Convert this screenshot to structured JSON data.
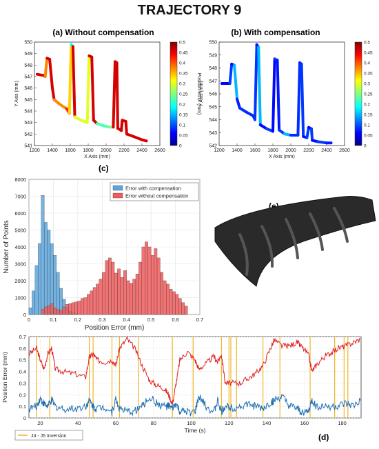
{
  "figure": {
    "title": "TRAJECTORY 9",
    "labels": {
      "c": "(c)",
      "d": "(d)",
      "e": "(e)"
    },
    "colors": {
      "error_low": "#0a12c8",
      "error_high": "#7a0000",
      "with_comp": "#5aa5dc",
      "without_comp": "#ef5a5a",
      "inversion": "#f0b428",
      "blue_line": "#1f6fb4",
      "red_line": "#e02020"
    }
  },
  "chart_data": [
    {
      "type": "line",
      "title": "(a) Without compensation",
      "xlabel": "X Axis (mm)",
      "ylabel": "Y Axis (mm)",
      "xlim": [
        1200,
        2600
      ],
      "ylim": [
        541,
        550
      ],
      "xticks": [
        1200,
        1400,
        1600,
        1800,
        2000,
        2200,
        2400,
        2600
      ],
      "yticks": [
        541,
        542,
        543,
        544,
        545,
        546,
        547,
        548,
        549,
        550
      ],
      "path": [
        [
          1230,
          547.2
        ],
        [
          1300,
          547.1
        ],
        [
          1320,
          547.0
        ],
        [
          1340,
          548.6
        ],
        [
          1370,
          548.5
        ],
        [
          1400,
          546.0
        ],
        [
          1420,
          545.0
        ],
        [
          1480,
          544.6
        ],
        [
          1560,
          544.2
        ],
        [
          1590,
          543.8
        ],
        [
          1610,
          549.8
        ],
        [
          1630,
          549.6
        ],
        [
          1650,
          543.5
        ],
        [
          1720,
          543.2
        ],
        [
          1790,
          543.0
        ],
        [
          1810,
          548.8
        ],
        [
          1840,
          548.7
        ],
        [
          1860,
          543.2
        ],
        [
          1900,
          542.9
        ],
        [
          1980,
          542.7
        ],
        [
          2040,
          542.6
        ],
        [
          2080,
          542.6
        ],
        [
          2100,
          548.3
        ],
        [
          2120,
          548.2
        ],
        [
          2130,
          542.5
        ],
        [
          2170,
          542.3
        ],
        [
          2180,
          543.2
        ],
        [
          2220,
          543.1
        ],
        [
          2230,
          542.0
        ],
        [
          2300,
          541.8
        ],
        [
          2400,
          541.5
        ],
        [
          2450,
          541.4
        ]
      ],
      "colorbar": {
        "label": "Position Error (mm)",
        "range": [
          0,
          0.5
        ],
        "ticks": [
          0,
          0.05,
          0.1,
          0.15,
          0.2,
          0.25,
          0.3,
          0.35,
          0.4,
          0.45,
          0.5
        ]
      }
    },
    {
      "type": "line",
      "title": "(b) With compensation",
      "xlabel": "X Axis (mm)",
      "ylabel": "Y Axis (mm)",
      "xlim": [
        1200,
        2600
      ],
      "ylim": [
        542,
        550
      ],
      "xticks": [
        1200,
        1400,
        1600,
        1800,
        2000,
        2200,
        2400,
        2600
      ],
      "yticks": [
        542,
        543,
        544,
        545,
        546,
        547,
        548,
        549,
        550
      ],
      "path": [
        [
          1230,
          546.8
        ],
        [
          1320,
          546.8
        ],
        [
          1340,
          548.3
        ],
        [
          1370,
          548.2
        ],
        [
          1400,
          545.6
        ],
        [
          1430,
          544.9
        ],
        [
          1500,
          544.6
        ],
        [
          1580,
          544.3
        ],
        [
          1600,
          544.0
        ],
        [
          1620,
          549.8
        ],
        [
          1640,
          549.6
        ],
        [
          1660,
          543.6
        ],
        [
          1730,
          543.3
        ],
        [
          1800,
          543.1
        ],
        [
          1820,
          548.7
        ],
        [
          1850,
          548.6
        ],
        [
          1870,
          543.2
        ],
        [
          1930,
          542.9
        ],
        [
          2000,
          542.8
        ],
        [
          2080,
          542.8
        ],
        [
          2100,
          548.4
        ],
        [
          2120,
          548.3
        ],
        [
          2140,
          542.7
        ],
        [
          2180,
          542.6
        ],
        [
          2200,
          543.4
        ],
        [
          2230,
          543.3
        ],
        [
          2240,
          542.4
        ],
        [
          2300,
          542.3
        ],
        [
          2400,
          542.2
        ],
        [
          2450,
          542.2
        ]
      ],
      "colorbar": {
        "label": "Position Error (mm)",
        "range": [
          0,
          0.5
        ],
        "ticks": [
          0,
          0.05,
          0.1,
          0.15,
          0.2,
          0.25,
          0.3,
          0.35,
          0.4,
          0.45,
          0.5
        ]
      }
    },
    {
      "type": "bar",
      "xlabel": "Position Error (mm)",
      "ylabel": "Number of Points",
      "xlim": [
        0,
        0.7
      ],
      "ylim": [
        0,
        8000
      ],
      "xticks": [
        0,
        0.1,
        0.2,
        0.3,
        0.4,
        0.5,
        0.6,
        0.7
      ],
      "yticks": [
        0,
        1000,
        2000,
        3000,
        4000,
        5000,
        6000,
        7000,
        8000
      ],
      "bin_width": 0.0125,
      "series": [
        {
          "name": "Error with compensation",
          "bin_start": 0,
          "values": [
            400,
            1400,
            2900,
            4200,
            7050,
            5450,
            5000,
            4200,
            3500,
            2500,
            1550,
            900,
            450,
            200,
            100,
            50
          ]
        },
        {
          "name": "Error without compensation",
          "bin_start": 0.05,
          "values": [
            300,
            450,
            520,
            650,
            400,
            300,
            250,
            450,
            600,
            650,
            700,
            750,
            800,
            950,
            1000,
            1200,
            1400,
            1600,
            1800,
            2100,
            2500,
            3200,
            3350,
            3100,
            2450,
            2700,
            2200,
            2600,
            2000,
            1850,
            2100,
            2400,
            3100,
            4000,
            4300,
            4000,
            3500,
            3900,
            3350,
            2500,
            2000,
            1800,
            1500,
            1350,
            1200,
            950,
            700,
            500
          ]
        }
      ]
    },
    {
      "type": "line",
      "xlabel": "Time (s)",
      "ylabel": "Position Error (mm)",
      "xlim": [
        14,
        190
      ],
      "ylim": [
        0,
        0.7
      ],
      "xticks": [
        20,
        40,
        60,
        80,
        100,
        120,
        140,
        160,
        180
      ],
      "yticks": [
        0,
        0.1,
        0.2,
        0.3,
        0.4,
        0.5,
        0.6,
        0.7
      ],
      "series": [
        {
          "name": "without compensation",
          "x": [
            14,
            18,
            20,
            22,
            24,
            26,
            28,
            32,
            38,
            44,
            46,
            48,
            50,
            54,
            58,
            60,
            62,
            66,
            70,
            74,
            78,
            82,
            86,
            88,
            90,
            92,
            94,
            98,
            102,
            104,
            108,
            112,
            114,
            116,
            118,
            122,
            126,
            130,
            134,
            138,
            142,
            144,
            148,
            152,
            156,
            158,
            162,
            164,
            166,
            170,
            174,
            178,
            182,
            186,
            190
          ],
          "y": [
            0.55,
            0.6,
            0.5,
            0.42,
            0.55,
            0.6,
            0.42,
            0.4,
            0.38,
            0.35,
            0.52,
            0.55,
            0.5,
            0.48,
            0.5,
            0.45,
            0.6,
            0.68,
            0.6,
            0.45,
            0.32,
            0.28,
            0.25,
            0.2,
            0.12,
            0.3,
            0.5,
            0.57,
            0.5,
            0.42,
            0.47,
            0.53,
            0.48,
            0.55,
            0.3,
            0.3,
            0.3,
            0.34,
            0.38,
            0.45,
            0.6,
            0.67,
            0.62,
            0.62,
            0.65,
            0.62,
            0.55,
            0.4,
            0.45,
            0.52,
            0.56,
            0.6,
            0.62,
            0.65,
            0.68
          ]
        },
        {
          "name": "with compensation",
          "x": [
            14,
            18,
            20,
            22,
            24,
            26,
            28,
            32,
            38,
            44,
            46,
            48,
            50,
            54,
            58,
            60,
            62,
            66,
            70,
            74,
            78,
            82,
            86,
            88,
            90,
            92,
            94,
            98,
            102,
            104,
            108,
            112,
            114,
            116,
            118,
            122,
            126,
            130,
            134,
            138,
            142,
            144,
            148,
            152,
            156,
            158,
            162,
            164,
            166,
            170,
            174,
            178,
            182,
            186,
            190
          ],
          "y": [
            0.08,
            0.1,
            0.17,
            0.12,
            0.1,
            0.15,
            0.1,
            0.08,
            0.08,
            0.1,
            0.15,
            0.1,
            0.08,
            0.1,
            0.05,
            0.16,
            0.08,
            0.05,
            0.06,
            0.1,
            0.18,
            0.12,
            0.1,
            0.1,
            0.08,
            0.12,
            0.05,
            0.05,
            0.05,
            0.18,
            0.1,
            0.05,
            0.15,
            0.05,
            0.1,
            0.09,
            0.1,
            0.12,
            0.1,
            0.08,
            0.13,
            0.15,
            0.18,
            0.1,
            0.08,
            0.05,
            0.05,
            0.15,
            0.1,
            0.1,
            0.1,
            0.1,
            0.12,
            0.1,
            0.15
          ]
        }
      ],
      "inversions": [
        18,
        25,
        46,
        48,
        58,
        62,
        72,
        90,
        101,
        116,
        120,
        121,
        124,
        138,
        147,
        163,
        176,
        181,
        183
      ],
      "legend": "J4 - J5 Inversion"
    }
  ]
}
